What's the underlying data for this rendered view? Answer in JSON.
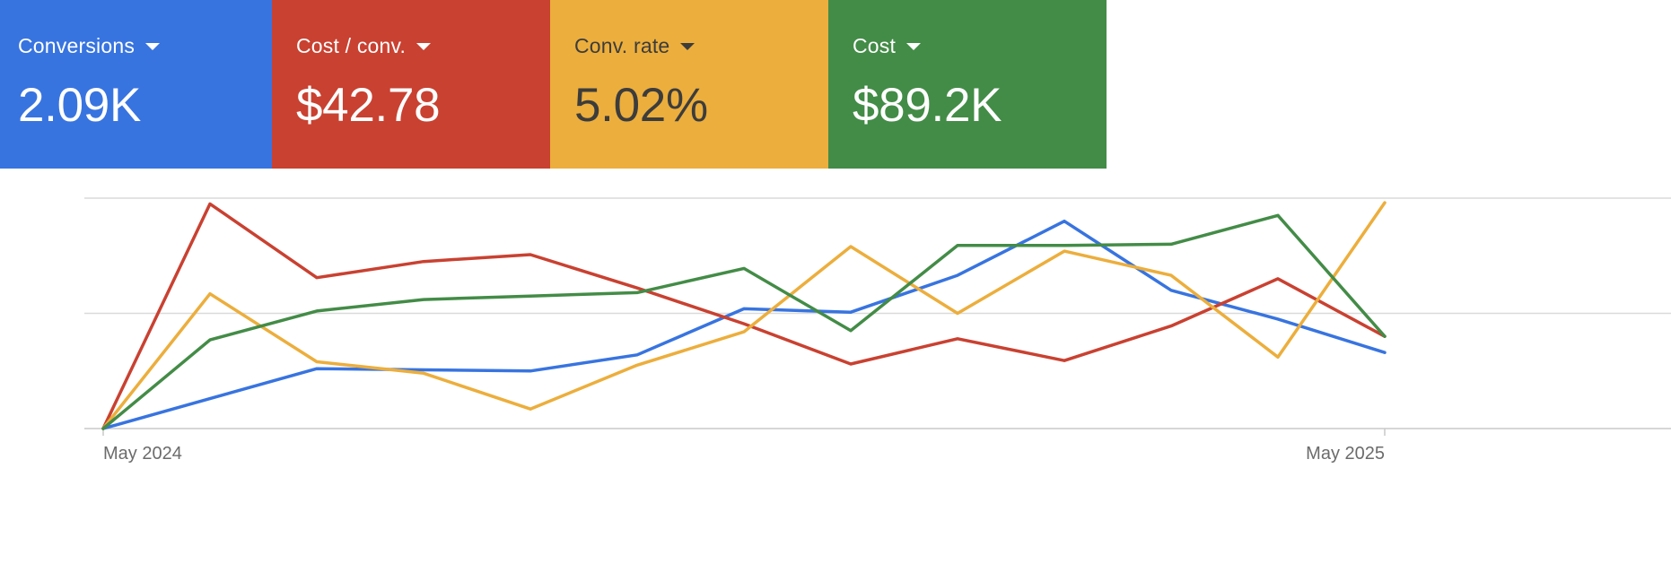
{
  "scorecards": [
    {
      "label": "Conversions",
      "value": "2.09K",
      "bg": "#3874e0",
      "fg": "#ffffff",
      "icon": "chevron-down-icon"
    },
    {
      "label": "Cost / conv.",
      "value": "$42.78",
      "bg": "#c94131",
      "fg": "#ffffff",
      "icon": "chevron-down-icon"
    },
    {
      "label": "Conv. rate",
      "value": "5.02%",
      "bg": "#ecae3c",
      "fg": "#3c3c3c",
      "icon": "chevron-down-icon"
    },
    {
      "label": "Cost",
      "value": "$89.2K",
      "bg": "#438c47",
      "fg": "#ffffff",
      "icon": "chevron-down-icon"
    }
  ],
  "chart_data": {
    "type": "line",
    "title": "",
    "xlabel": "",
    "ylabel": "",
    "grid": "horizontal",
    "y_gridlines": 3,
    "x_tick_labels": [
      "May 2024",
      "May 2025"
    ],
    "x": [
      0,
      1,
      2,
      3,
      4,
      5,
      6,
      7,
      8,
      9,
      10,
      11,
      12
    ],
    "ylim": [
      0,
      1
    ],
    "series": [
      {
        "name": "Conversions",
        "color": "#3874e0",
        "values": [
          0.0,
          0.13,
          0.26,
          0.255,
          0.25,
          0.32,
          0.52,
          0.505,
          0.665,
          0.9,
          0.6,
          0.475,
          0.33
        ]
      },
      {
        "name": "Cost / conv.",
        "color": "#c94131",
        "values": [
          0.0,
          0.975,
          0.655,
          0.725,
          0.755,
          0.61,
          0.455,
          0.28,
          0.39,
          0.295,
          0.445,
          0.65,
          0.4
        ]
      },
      {
        "name": "Conv. rate",
        "color": "#ecae3c",
        "values": [
          0.0,
          0.585,
          0.29,
          0.24,
          0.085,
          0.275,
          0.42,
          0.79,
          0.5,
          0.77,
          0.665,
          0.31,
          0.98
        ]
      },
      {
        "name": "Cost",
        "color": "#438c47",
        "values": [
          0.0,
          0.385,
          0.51,
          0.56,
          0.575,
          0.59,
          0.695,
          0.425,
          0.795,
          0.795,
          0.8,
          0.925,
          0.4
        ]
      }
    ]
  }
}
